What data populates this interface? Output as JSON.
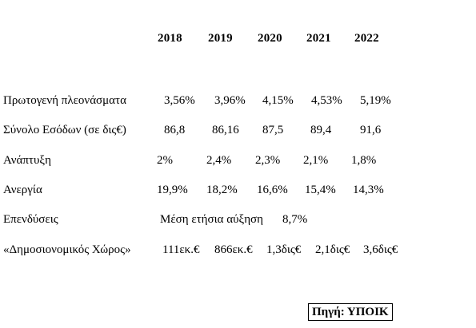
{
  "header": {
    "years": [
      "2018",
      "2019",
      "2020",
      "2021",
      "2022"
    ]
  },
  "rows": [
    {
      "label": "Πρωτογενή πλεονάσματα",
      "values": [
        "3,56%",
        "3,96%",
        "4,15%",
        "4,53%",
        "5,19%"
      ]
    },
    {
      "label": "Σύνολο Εσόδων (σε δις€)",
      "values": [
        "86,8",
        "86,16",
        "87,5",
        "89,4",
        "91,6"
      ]
    },
    {
      "label": "Ανάπτυξη",
      "values": [
        "2%",
        "2,4%",
        "2,3%",
        "2,1%",
        "1,8%"
      ]
    },
    {
      "label": "Ανεργία",
      "values": [
        "19,9%",
        "18,2%",
        "16,6%",
        "15,4%",
        "14,3%"
      ]
    },
    {
      "label": "Επενδύσεις",
      "note": "Μέση ετήσια αύξηση",
      "note_value": "8,7%"
    },
    {
      "label": "«Δημοσιονομικός Χώρος»",
      "values": [
        "111εκ.€",
        "866εκ.€",
        "1,3δις€",
        "2,1δις€",
        "3,6δις€"
      ]
    }
  ],
  "source": "Πηγή: ΥΠΟΙΚ"
}
